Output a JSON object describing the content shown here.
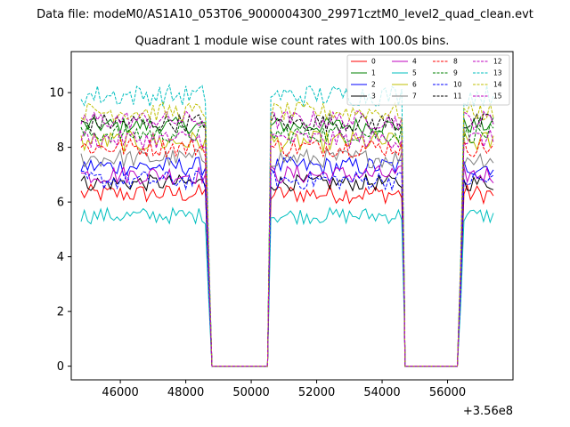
{
  "header": {
    "datafile": "Data file: modeM0/AS1A10_053T06_9000004300_29971cztM0_level2_quad_clean.evt"
  },
  "chart_data": {
    "type": "line",
    "title": "Quadrant 1 module wise count rates with 100.0s bins.",
    "xlabel": "",
    "ylabel": "",
    "x_offset_label": "+3.56e8",
    "xlim": [
      44500,
      58000
    ],
    "ylim": [
      -0.5,
      11.5
    ],
    "xticks": [
      46000,
      48000,
      50000,
      52000,
      54000,
      56000
    ],
    "xtick_labels": [
      "46000",
      "48000",
      "50000",
      "52000",
      "54000",
      "56000"
    ],
    "yticks": [
      0,
      2,
      4,
      6,
      8,
      10
    ],
    "ytick_labels": [
      "0",
      "2",
      "4",
      "6",
      "8",
      "10"
    ],
    "bin_width": 100,
    "segments": [
      {
        "x_start": 44800,
        "x_end": 48600
      },
      {
        "x_start": 50600,
        "x_end": 54600
      },
      {
        "x_start": 56500,
        "x_end": 57400
      }
    ],
    "gaps": [
      {
        "x_start": 48800,
        "x_end": 50500,
        "value": 0
      },
      {
        "x_start": 54700,
        "x_end": 56300,
        "value": 0
      }
    ],
    "legend_loc": "upper right",
    "series": [
      {
        "name": "0",
        "color": "#ff0000",
        "dashed": false,
        "mean": 6.3,
        "jitter": 0.35
      },
      {
        "name": "1",
        "color": "#008000",
        "dashed": false,
        "mean": 8.8,
        "jitter": 0.3
      },
      {
        "name": "2",
        "color": "#0000ff",
        "dashed": false,
        "mean": 7.3,
        "jitter": 0.35
      },
      {
        "name": "3",
        "color": "#000000",
        "dashed": false,
        "mean": 6.7,
        "jitter": 0.3
      },
      {
        "name": "4",
        "color": "#bf00bf",
        "dashed": false,
        "mean": 7.0,
        "jitter": 0.35
      },
      {
        "name": "5",
        "color": "#00bfbf",
        "dashed": false,
        "mean": 5.5,
        "jitter": 0.3
      },
      {
        "name": "6",
        "color": "#bfbf00",
        "dashed": false,
        "mean": 8.2,
        "jitter": 0.4
      },
      {
        "name": "7",
        "color": "#808080",
        "dashed": false,
        "mean": 7.6,
        "jitter": 0.35
      },
      {
        "name": "8",
        "color": "#ff0000",
        "dashed": true,
        "mean": 8.0,
        "jitter": 0.35
      },
      {
        "name": "9",
        "color": "#008000",
        "dashed": true,
        "mean": 8.5,
        "jitter": 0.35
      },
      {
        "name": "10",
        "color": "#0000ff",
        "dashed": true,
        "mean": 6.8,
        "jitter": 0.35
      },
      {
        "name": "11",
        "color": "#000000",
        "dashed": true,
        "mean": 8.9,
        "jitter": 0.35
      },
      {
        "name": "12",
        "color": "#bf00bf",
        "dashed": true,
        "mean": 9.0,
        "jitter": 0.35
      },
      {
        "name": "13",
        "color": "#00bfbf",
        "dashed": true,
        "mean": 9.9,
        "jitter": 0.4
      },
      {
        "name": "14",
        "color": "#bfbf00",
        "dashed": true,
        "mean": 9.3,
        "jitter": 0.35
      },
      {
        "name": "15",
        "color": "#bf00bf",
        "dashed": true,
        "mean": 8.3,
        "jitter": 0.35
      }
    ]
  }
}
